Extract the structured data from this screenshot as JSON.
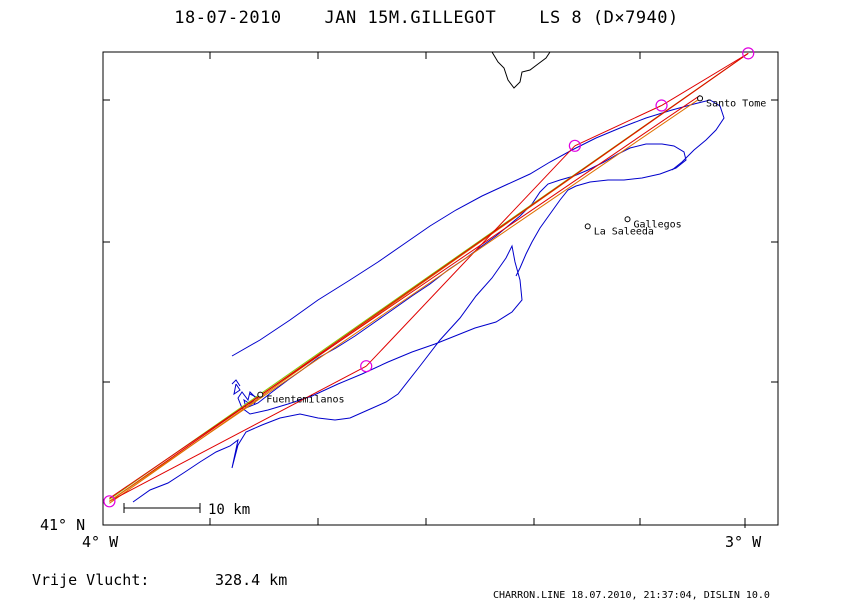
{
  "header": {
    "title": "18-07-2010    JAN 15M.GILLEGOT    LS 8 (D×7940)"
  },
  "axes": {
    "y_label": "41° N",
    "x_left_label": "4° W",
    "x_right_label": "3° W"
  },
  "places": [
    {
      "name": "Santo Tome",
      "lon": -3.07,
      "lat": 41.9
    },
    {
      "name": "La Saleeda",
      "lon": -3.245,
      "lat": 41.63
    },
    {
      "name": "Gallegos",
      "lon": -3.183,
      "lat": 41.645
    },
    {
      "name": "Fuentemilanos",
      "lon": -3.755,
      "lat": 41.275
    }
  ],
  "scale_bar": {
    "label": "10 km"
  },
  "turnpoints": [
    {
      "lon": -3.99,
      "lat": 41.05
    },
    {
      "lon": -3.59,
      "lat": 41.335
    },
    {
      "lon": -3.265,
      "lat": 41.8
    },
    {
      "lon": -3.13,
      "lat": 41.885
    },
    {
      "lon": -2.995,
      "lat": 41.995
    }
  ],
  "footer": {
    "distance_label": "Vrije Vlucht:",
    "distance_value": "328.4 km",
    "credits": "CHARRON.LINE 18.07.2010, 21:37:04, DISLIN 10.0"
  },
  "colors": {
    "track": "#0000cc",
    "task_red": "#e00000",
    "task_orange": "#e07000",
    "task_green": "#88cc00",
    "turnpoint": "#e000e0"
  }
}
